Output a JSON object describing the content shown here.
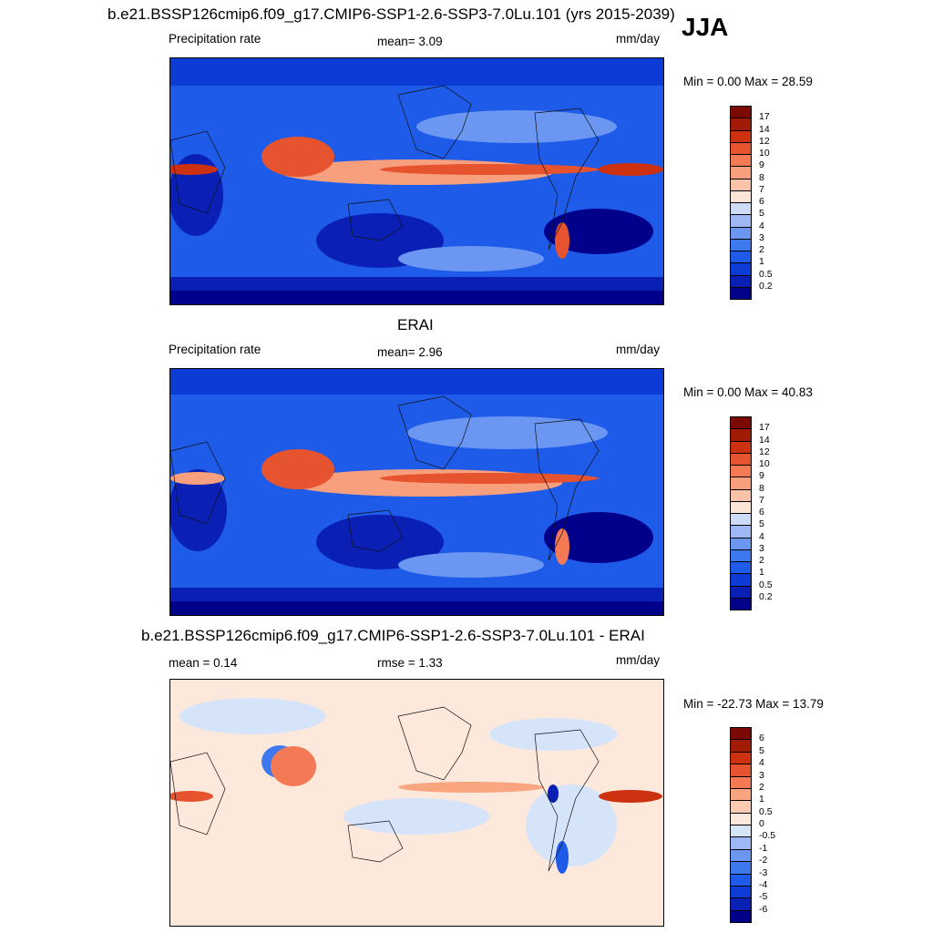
{
  "figure": {
    "title": "b.e21.BSSP126cmip6.f09_g17.CMIP6-SSP1-2.6-SSP3-7.0Lu.101 (yrs 2015-2039)",
    "season": "JJA"
  },
  "chart_data": [
    {
      "type": "heatmap",
      "panel": "model",
      "title": "b.e21.BSSP126cmip6.f09_g17.CMIP6-SSP1-2.6-SSP3-7.0Lu.101 (yrs 2015-2039)",
      "left_label": "Precipitation rate",
      "center_label": "mean=   3.09",
      "mean": 3.09,
      "units": "mm/day",
      "min_max_text": "Min =   0.00 Max =  28.59",
      "min": 0.0,
      "max": 28.59,
      "colorbar": {
        "levels": [
          "0.2",
          "0.5",
          "1",
          "2",
          "3",
          "4",
          "5",
          "6",
          "7",
          "8",
          "9",
          "10",
          "12",
          "14",
          "17"
        ],
        "colors": [
          "#00008b",
          "#0a1fb4",
          "#0d3bd6",
          "#1d5be8",
          "#3d78ef",
          "#6b97f2",
          "#9db8f5",
          "#cfdcf8",
          "#fde5d8",
          "#fbc3a8",
          "#f8a07e",
          "#f37a55",
          "#e6532f",
          "#cc3210",
          "#a01a05",
          "#7a0a02"
        ]
      }
    },
    {
      "type": "heatmap",
      "panel": "obs",
      "title": "ERAI",
      "left_label": "Precipitation rate",
      "center_label": "mean=   2.96",
      "mean": 2.96,
      "units": "mm/day",
      "min_max_text": "Min =   0.00 Max =  40.83",
      "min": 0.0,
      "max": 40.83,
      "colorbar": {
        "levels": [
          "0.2",
          "0.5",
          "1",
          "2",
          "3",
          "4",
          "5",
          "6",
          "7",
          "8",
          "9",
          "10",
          "12",
          "14",
          "17"
        ],
        "colors": [
          "#00008b",
          "#0a1fb4",
          "#0d3bd6",
          "#1d5be8",
          "#3d78ef",
          "#6b97f2",
          "#9db8f5",
          "#cfdcf8",
          "#fde5d8",
          "#fbc3a8",
          "#f8a07e",
          "#f37a55",
          "#e6532f",
          "#cc3210",
          "#a01a05",
          "#7a0a02"
        ]
      }
    },
    {
      "type": "heatmap",
      "panel": "difference",
      "title": "b.e21.BSSP126cmip6.f09_g17.CMIP6-SSP1-2.6-SSP3-7.0Lu.101 - ERAI",
      "left_label": "mean =   0.14",
      "center_label": "rmse =   1.33",
      "mean": 0.14,
      "rmse": 1.33,
      "units": "mm/day",
      "min_max_text": "Min = -22.73 Max =  13.79",
      "min": -22.73,
      "max": 13.79,
      "colorbar": {
        "levels": [
          "-6",
          "-5",
          "-4",
          "-3",
          "-2",
          "-1",
          "-0.5",
          "0",
          "0.5",
          "1",
          "2",
          "3",
          "4",
          "5",
          "6"
        ],
        "colors": [
          "#00008b",
          "#0a1fb4",
          "#0d3bd6",
          "#1d5be8",
          "#3d78ef",
          "#6b97f2",
          "#9db8f5",
          "#d6e4fa",
          "#fde8dc",
          "#fbcbb2",
          "#f8a580",
          "#f37a55",
          "#e6532f",
          "#cc3210",
          "#a01a05",
          "#7a0a02"
        ]
      }
    }
  ]
}
